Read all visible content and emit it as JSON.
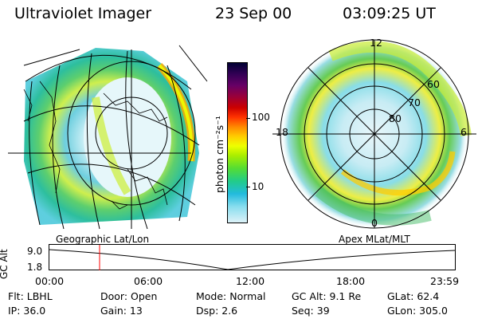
{
  "header": {
    "title": "Ultraviolet Imager",
    "date": "23 Sep 00",
    "time": "03:09:25 UT"
  },
  "left_map": {
    "caption": "Geographic Lat/Lon"
  },
  "right_map": {
    "caption": "Apex MLat/MLT",
    "mlt_labels": [
      "12",
      "18",
      "6",
      "0"
    ],
    "lat_labels": [
      "60",
      "70",
      "80"
    ]
  },
  "colorbar": {
    "title": "photon cm⁻²s⁻¹",
    "ticks": [
      "100",
      "10"
    ],
    "colors": [
      "#000033",
      "#330055",
      "#660066",
      "#99003a",
      "#cc0000",
      "#ff3300",
      "#ff8800",
      "#ffcc00",
      "#eeff00",
      "#aaee00",
      "#55dd33",
      "#22cc88",
      "#22bbdd",
      "#88ddee",
      "#ddf2f8"
    ]
  },
  "timeline": {
    "ylabel": "GC Alt",
    "y_ticks": [
      "9.0",
      "1.8"
    ],
    "x_ticks": [
      "00:00",
      "06:00",
      "12:00",
      "18:00",
      "23:59"
    ]
  },
  "status": {
    "row1": {
      "flt": "Flt: LBHL",
      "door": "Door: Open",
      "mode": "Mode: Normal",
      "gcalt": "GC Alt: 9.1 Re",
      "glat": "GLat:  62.4"
    },
    "row2": {
      "ip": "IP: 36.0",
      "gain": "Gain: 13",
      "dsp": "Dsp:    2.6",
      "seq": "Seq: 39",
      "glon": "GLon: 305.0"
    }
  }
}
